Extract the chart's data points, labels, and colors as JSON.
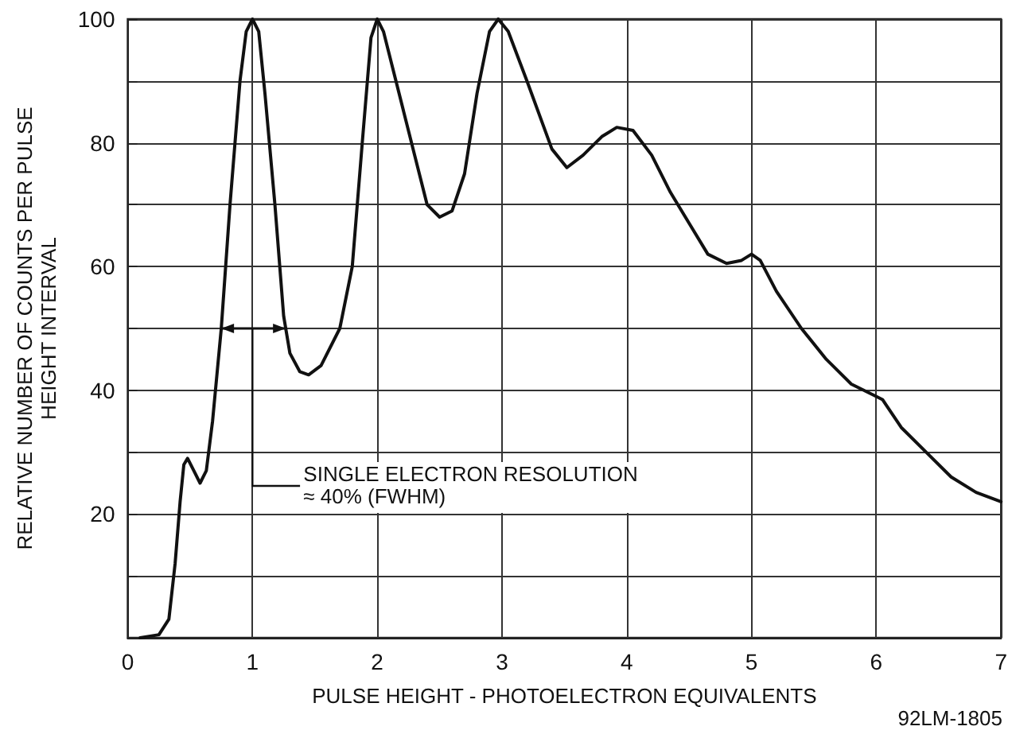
{
  "chart_data": {
    "type": "line",
    "xlabel": "PULSE HEIGHT - PHOTOELECTRON EQUIVALENTS",
    "ylabel": "RELATIVE NUMBER OF COUNTS PER PULSE\nHEIGHT INTERVAL",
    "series": [
      {
        "color": "#111111",
        "x": [
          0.1,
          0.25,
          0.33,
          0.38,
          0.42,
          0.45,
          0.48,
          0.53,
          0.58,
          0.63,
          0.68,
          0.75,
          0.82,
          0.9,
          0.95,
          1.0,
          1.05,
          1.1,
          1.18,
          1.25,
          1.3,
          1.38,
          1.45,
          1.55,
          1.7,
          1.8,
          1.88,
          1.95,
          2.0,
          2.05,
          2.15,
          2.3,
          2.4,
          2.5,
          2.6,
          2.7,
          2.8,
          2.9,
          2.97,
          3.05,
          3.2,
          3.4,
          3.52,
          3.65,
          3.8,
          3.92,
          4.05,
          4.2,
          4.35,
          4.5,
          4.65,
          4.8,
          4.92,
          5.0,
          5.07,
          5.2,
          5.4,
          5.6,
          5.8,
          6.0,
          6.05,
          6.2,
          6.4,
          6.6,
          6.8,
          7.0
        ],
        "values": [
          0,
          0.5,
          3,
          12,
          22,
          28,
          29,
          27,
          25,
          27,
          35,
          50,
          70,
          90,
          98,
          100,
          98,
          88,
          70,
          52,
          46,
          43,
          42.5,
          44,
          50,
          60,
          80,
          97,
          100,
          98,
          90,
          78,
          70,
          68,
          69,
          75,
          88,
          98,
          100,
          98,
          90,
          79,
          76,
          78,
          81,
          82.5,
          82,
          78,
          72,
          67,
          62,
          60.5,
          61,
          62,
          61,
          56,
          50,
          45,
          41,
          39,
          38.5,
          34,
          30,
          26,
          23.5,
          22
        ]
      }
    ],
    "xlim": [
      0,
      7
    ],
    "xticks": [
      0,
      1,
      2,
      3,
      4,
      5,
      6,
      7
    ],
    "ylim": [
      0,
      100
    ],
    "yticks": [
      {
        "value": 10,
        "label": null
      },
      20,
      {
        "value": 30,
        "label": null
      },
      40,
      {
        "value": 50,
        "label": null
      },
      60,
      {
        "value": 70,
        "label": null
      },
      80,
      {
        "value": 90,
        "label": null
      },
      100
    ],
    "grid": true,
    "marker": "none",
    "line_style": "solid",
    "annotations": [
      "SINGLE ELECTRON RESOLUTION\n≈ 40% (FWHM)",
      "92LM-1805"
    ]
  }
}
